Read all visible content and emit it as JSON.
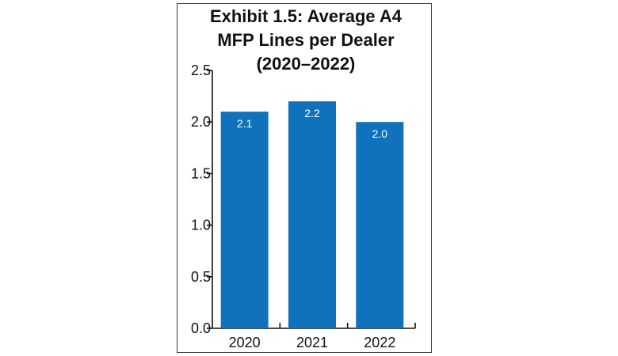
{
  "chart_data": {
    "type": "bar",
    "title_lines": [
      "Exhibit 1.5: Average A4",
      "MFP Lines per Dealer",
      "(2020–2022)"
    ],
    "categories": [
      "2020",
      "2021",
      "2022"
    ],
    "values": [
      2.1,
      2.2,
      2.0
    ],
    "value_labels": [
      "2.1",
      "2.2",
      "2.0"
    ],
    "xlabel": "",
    "ylabel": "",
    "ylim": [
      0,
      2.5
    ],
    "yticks": [
      "0.0",
      "0.5",
      "1.0",
      "1.5",
      "2.0",
      "2.5"
    ],
    "ytick_values": [
      0,
      0.5,
      1.0,
      1.5,
      2.0,
      2.5
    ],
    "bar_color": "#1072bd",
    "grid": false,
    "legend": "none"
  }
}
